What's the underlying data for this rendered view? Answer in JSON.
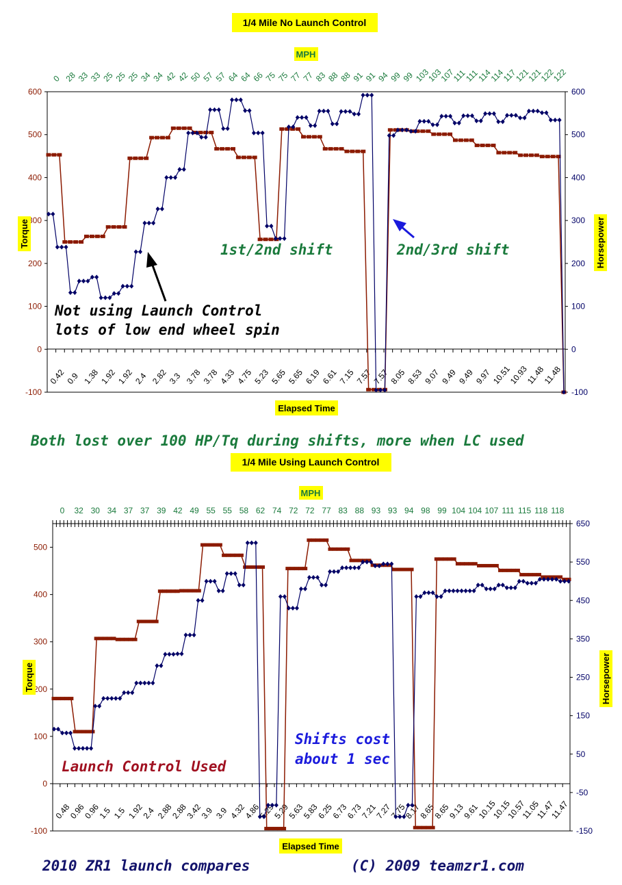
{
  "colors": {
    "torque": "#8b1a00",
    "hp": "#000066",
    "green_text": "#1a7a3c",
    "red_text": "#a01020",
    "blue_text": "#1a1adc",
    "navy_text": "#13136b",
    "highlight": "#ffff00"
  },
  "captions": {
    "both_lost": "Both lost over 100 HP/Tq during shifts, more when LC used",
    "footer_left": "2010 ZR1 launch compares",
    "footer_right": "(C) 2009 teamzr1.com"
  },
  "chart_data": [
    {
      "type": "line",
      "title": "1/4 Mile No Launch Control",
      "xlabel": "Elapsed Time",
      "top_axis_label": "MPH",
      "ylabel": "Torque",
      "y2label": "Horsepower",
      "ylim": [
        -100,
        600
      ],
      "y2lim": [
        -100,
        600
      ],
      "yticks": [
        "-100",
        "0",
        "100",
        "200",
        "300",
        "400",
        "500",
        "600"
      ],
      "y2ticks": [
        "-100",
        "0",
        "100",
        "200",
        "300",
        "400",
        "500",
        "600"
      ],
      "mph_ticks": [
        "0",
        "28",
        "33",
        "33",
        "25",
        "25",
        "25",
        "34",
        "34",
        "42",
        "42",
        "50",
        "57",
        "57",
        "64",
        "64",
        "66",
        "75",
        "75",
        "77",
        "77",
        "83",
        "88",
        "88",
        "91",
        "91",
        "94",
        "99",
        "99",
        "103",
        "103",
        "107",
        "111",
        "111",
        "114",
        "114",
        "117",
        "121",
        "121",
        "122",
        "122"
      ],
      "time_ticks": [
        "0.42",
        "0.9",
        "1.38",
        "1.92",
        "1.92",
        "2.4",
        "2.82",
        "3.3",
        "3.78",
        "3.78",
        "4.33",
        "4.75",
        "5.23",
        "5.65",
        "5.65",
        "6.19",
        "6.61",
        "7.15",
        "7.57",
        "7.57",
        "8.05",
        "8.53",
        "9.07",
        "9.49",
        "9.49",
        "9.97",
        "10.51",
        "10.93",
        "11.48",
        "11.48"
      ],
      "series": [
        {
          "name": "Torque",
          "values": [
            453,
            453,
            453,
            250,
            250,
            250,
            250,
            263,
            263,
            263,
            263,
            285,
            285,
            285,
            285,
            445,
            445,
            445,
            445,
            493,
            493,
            493,
            493,
            515,
            515,
            515,
            515,
            505,
            505,
            505,
            505,
            467,
            467,
            467,
            467,
            447,
            447,
            447,
            447,
            256,
            256,
            256,
            256,
            513,
            513,
            513,
            513,
            495,
            495,
            495,
            495,
            467,
            467,
            467,
            467,
            461,
            461,
            461,
            461,
            -94,
            -94,
            -94,
            -94,
            511,
            511,
            511,
            511,
            508,
            508,
            508,
            508,
            501,
            501,
            501,
            501,
            487,
            487,
            487,
            487,
            475,
            475,
            475,
            475,
            458,
            458,
            458,
            458,
            452,
            452,
            452,
            452,
            449,
            449,
            449,
            449,
            -100
          ]
        },
        {
          "name": "Horsepower",
          "values": [
            315,
            315,
            238,
            238,
            238,
            132,
            132,
            159,
            159,
            159,
            168,
            168,
            120,
            120,
            120,
            130,
            130,
            147,
            147,
            147,
            227,
            227,
            294,
            294,
            294,
            327,
            327,
            400,
            400,
            400,
            419,
            419,
            504,
            504,
            504,
            494,
            494,
            558,
            558,
            558,
            514,
            514,
            581,
            581,
            581,
            556,
            556,
            504,
            504,
            504,
            287,
            287,
            258,
            258,
            258,
            518,
            518,
            540,
            540,
            540,
            521,
            521,
            555,
            555,
            555,
            525,
            525,
            554,
            554,
            554,
            548,
            548,
            592,
            592,
            592,
            -95,
            -95,
            -95,
            498,
            498,
            511,
            511,
            511,
            508,
            508,
            531,
            531,
            531,
            523,
            523,
            543,
            543,
            543,
            527,
            527,
            544,
            544,
            544,
            532,
            532,
            549,
            549,
            549,
            530,
            530,
            545,
            545,
            545,
            539,
            539,
            555,
            555,
            555,
            551,
            551,
            534,
            534,
            534,
            -100
          ]
        }
      ],
      "annotations": [
        {
          "text": "1st/2nd shift",
          "color": "#1a7a3c"
        },
        {
          "text": "2nd/3rd shift",
          "color": "#1a7a3c"
        },
        {
          "text": "Not using Launch Control",
          "color": "#000000"
        },
        {
          "text": "lots of low end wheel spin",
          "color": "#000000"
        }
      ],
      "grid": false,
      "legend": "none"
    },
    {
      "type": "line",
      "title": "1/4 Mile Using Launch Control",
      "xlabel": "Elapsed Time",
      "top_axis_label": "MPH",
      "ylabel": "Torque",
      "y2label": "Horsepower",
      "ylim": [
        -100,
        550
      ],
      "y2lim": [
        -150,
        650
      ],
      "yticks": [
        "-100",
        "0",
        "100",
        "200",
        "300",
        "400",
        "500"
      ],
      "y2ticks": [
        "-150",
        "-50",
        "50",
        "150",
        "250",
        "350",
        "450",
        "550",
        "650"
      ],
      "mph_ticks": [
        "0",
        "32",
        "30",
        "34",
        "37",
        "37",
        "39",
        "42",
        "49",
        "55",
        "55",
        "58",
        "62",
        "74",
        "72",
        "72",
        "77",
        "83",
        "88",
        "93",
        "93",
        "94",
        "98",
        "99",
        "104",
        "104",
        "107",
        "111",
        "115",
        "118",
        "118"
      ],
      "time_ticks": [
        "0.48",
        "0.96",
        "0.96",
        "1.5",
        "1.5",
        "1.92",
        "2.4",
        "2.88",
        "2.88",
        "3.42",
        "3.9",
        "3.9",
        "4.32",
        "4.86",
        "5.29",
        "5.29",
        "5.63",
        "5.83",
        "6.25",
        "6.73",
        "6.73",
        "7.21",
        "7.27",
        "7.75",
        "8.17",
        "8.65",
        "8.65",
        "9.13",
        "9.61",
        "10.15",
        "10.15",
        "10.57",
        "11.05",
        "11.47",
        "11.47"
      ],
      "series": [
        {
          "name": "Torque",
          "values": [
            180,
            180,
            180,
            180,
            180,
            110,
            110,
            110,
            110,
            110,
            307,
            307,
            307,
            307,
            307,
            305,
            305,
            305,
            305,
            305,
            343,
            343,
            343,
            343,
            343,
            407,
            407,
            407,
            407,
            407,
            408,
            408,
            408,
            408,
            408,
            505,
            505,
            505,
            505,
            505,
            483,
            483,
            483,
            483,
            483,
            458,
            458,
            458,
            458,
            458,
            -95,
            -95,
            -95,
            -95,
            -95,
            455,
            455,
            455,
            455,
            455,
            515,
            515,
            515,
            515,
            515,
            496,
            496,
            496,
            496,
            496,
            472,
            472,
            472,
            472,
            472,
            462,
            462,
            462,
            462,
            462,
            453,
            453,
            453,
            453,
            453,
            -93,
            -93,
            -93,
            -93,
            -93,
            475,
            475,
            475,
            475,
            475,
            465,
            465,
            465,
            465,
            465,
            461,
            461,
            461,
            461,
            461,
            451,
            451,
            451,
            451,
            451,
            442,
            442,
            442,
            442,
            442,
            437,
            437,
            437,
            437,
            437,
            432,
            432
          ]
        },
        {
          "name": "Horsepower",
          "values": [
            115,
            115,
            105,
            105,
            105,
            65,
            65,
            65,
            65,
            65,
            175,
            175,
            195,
            195,
            195,
            195,
            195,
            210,
            210,
            210,
            235,
            235,
            235,
            235,
            235,
            280,
            280,
            310,
            310,
            310,
            311,
            311,
            360,
            360,
            360,
            450,
            450,
            500,
            500,
            500,
            475,
            475,
            520,
            520,
            520,
            490,
            490,
            600,
            600,
            600,
            -113,
            -113,
            -83,
            -83,
            -83,
            460,
            460,
            430,
            430,
            430,
            480,
            480,
            510,
            510,
            510,
            490,
            490,
            525,
            525,
            525,
            535,
            535,
            535,
            535,
            535,
            550,
            550,
            550,
            540,
            540,
            545,
            545,
            545,
            -113,
            -113,
            -113,
            -83,
            -83,
            460,
            460,
            470,
            470,
            470,
            460,
            460,
            475,
            475,
            475,
            475,
            475,
            475,
            475,
            475,
            490,
            490,
            480,
            480,
            480,
            490,
            490,
            483,
            483,
            483,
            500,
            500,
            495,
            495,
            495,
            505,
            505,
            505,
            505,
            505,
            500,
            500,
            500
          ]
        }
      ],
      "annotations": [
        {
          "text": "Launch Control Used",
          "color": "#a01020"
        },
        {
          "text": "Shifts cost",
          "color": "#1a1adc"
        },
        {
          "text": "about 1 sec",
          "color": "#1a1adc"
        }
      ],
      "grid": false,
      "legend": "none"
    }
  ]
}
